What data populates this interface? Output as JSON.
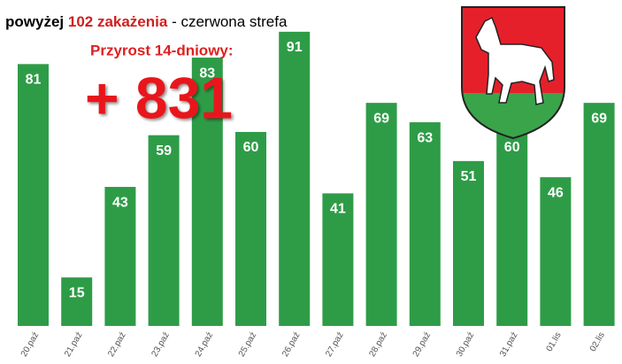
{
  "chart_data": {
    "type": "bar",
    "title_parts": [
      "powyżej",
      "102 zakażenia",
      "- czerwona strefa"
    ],
    "annotation_label": "Przyrost 14-dniowy:",
    "annotation_value": "+ 831",
    "categories": [
      "20.paź",
      "21.paź",
      "22.paź",
      "23.paź",
      "24.paź",
      "25.paź",
      "26.paź",
      "27.paź",
      "28.paź",
      "29.paź",
      "30.paź",
      "31.paź",
      "01.lis",
      "02.lis"
    ],
    "values": [
      81,
      15,
      43,
      59,
      83,
      60,
      91,
      41,
      69,
      63,
      51,
      60,
      46,
      69
    ],
    "color": "#2e9c47"
  }
}
